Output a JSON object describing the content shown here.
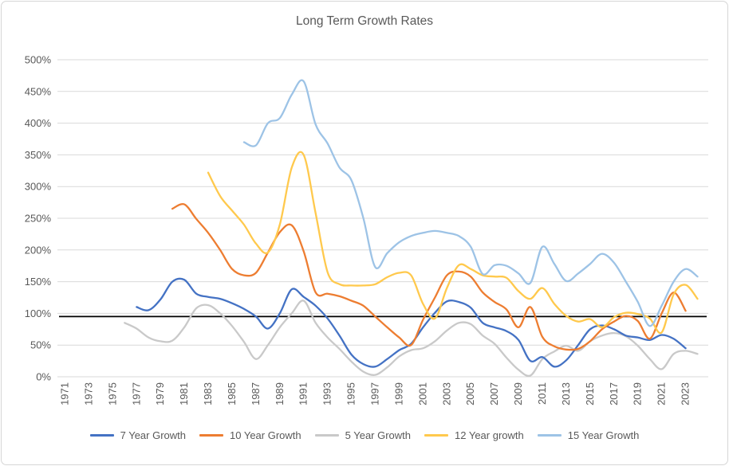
{
  "chart_data": {
    "type": "line",
    "title": "Long Term Growth Rates",
    "smoothed": true,
    "grid": true,
    "legend_position": "bottom",
    "text_color": "#595959",
    "grid_color": "#d9d9d9",
    "ylim": [
      0,
      500
    ],
    "y_tick_step": 50,
    "y_tick_labels": [
      "500%",
      "450%",
      "400%",
      "350%",
      "300%",
      "250%",
      "200%",
      "150%",
      "100%",
      "50%",
      "0%"
    ],
    "x_start_year": 1971,
    "x_end_year": 2024,
    "x_tick_step": 2,
    "x_tick_labels": [
      "1971",
      "1973",
      "1975",
      "1977",
      "1979",
      "1981",
      "1983",
      "1985",
      "1987",
      "1989",
      "1991",
      "1993",
      "1995",
      "1997",
      "1999",
      "2001",
      "2003",
      "2005",
      "2007",
      "2009",
      "2011",
      "2013",
      "2015",
      "2017",
      "2019",
      "2021",
      "2023"
    ],
    "reference_line": {
      "value": 95,
      "color": "#000000"
    },
    "series": [
      {
        "name": "7 Year Growth",
        "color": "#4472c4",
        "start_year": 1977,
        "values": [
          110,
          105,
          122,
          150,
          153,
          131,
          126,
          123,
          116,
          107,
          95,
          76,
          100,
          138,
          126,
          112,
          92,
          65,
          35,
          20,
          16,
          28,
          42,
          52,
          78,
          101,
          119,
          118,
          109,
          85,
          78,
          72,
          58,
          25,
          31,
          16,
          26,
          50,
          75,
          81,
          75,
          65,
          62,
          58,
          66,
          60,
          45
        ]
      },
      {
        "name": "10 Year Growth",
        "color": "#ed7d31",
        "start_year": 1980,
        "values": [
          265,
          272,
          249,
          227,
          200,
          170,
          160,
          164,
          196,
          228,
          239,
          198,
          133,
          131,
          127,
          120,
          112,
          95,
          78,
          62,
          50,
          90,
          125,
          160,
          166,
          158,
          133,
          118,
          106,
          78,
          110,
          63,
          48,
          43,
          44,
          56,
          75,
          87,
          96,
          88,
          60,
          100,
          133,
          104
        ]
      },
      {
        "name": "5 Year Growth",
        "color": "#c9c9c9",
        "start_year": 1976,
        "values": [
          85,
          76,
          62,
          56,
          57,
          78,
          108,
          113,
          100,
          80,
          55,
          28,
          50,
          78,
          100,
          120,
          85,
          62,
          44,
          24,
          8,
          3,
          15,
          32,
          42,
          45,
          56,
          73,
          85,
          83,
          65,
          52,
          30,
          11,
          2,
          28,
          40,
          49,
          41,
          56,
          65,
          69,
          64,
          49,
          28,
          12,
          36,
          41,
          36
        ]
      },
      {
        "name": "12 Year growth",
        "color": "#ffc94d",
        "start_year": 1983,
        "values": [
          322,
          285,
          262,
          240,
          210,
          196,
          240,
          330,
          350,
          258,
          165,
          146,
          144,
          144,
          146,
          157,
          164,
          160,
          115,
          92,
          140,
          176,
          170,
          160,
          158,
          156,
          135,
          123,
          140,
          115,
          96,
          87,
          91,
          78,
          94,
          101,
          99,
          92,
          70,
          130,
          145,
          123
        ]
      },
      {
        "name": "15 Year Growth",
        "color": "#9dc3e6",
        "start_year": 1986,
        "values": [
          370,
          365,
          400,
          408,
          445,
          466,
          398,
          368,
          330,
          310,
          250,
          173,
          195,
          212,
          222,
          227,
          230,
          227,
          222,
          205,
          162,
          176,
          175,
          163,
          148,
          205,
          178,
          151,
          163,
          178,
          194,
          180,
          150,
          118,
          80,
          112,
          150,
          170,
          158
        ]
      }
    ]
  }
}
